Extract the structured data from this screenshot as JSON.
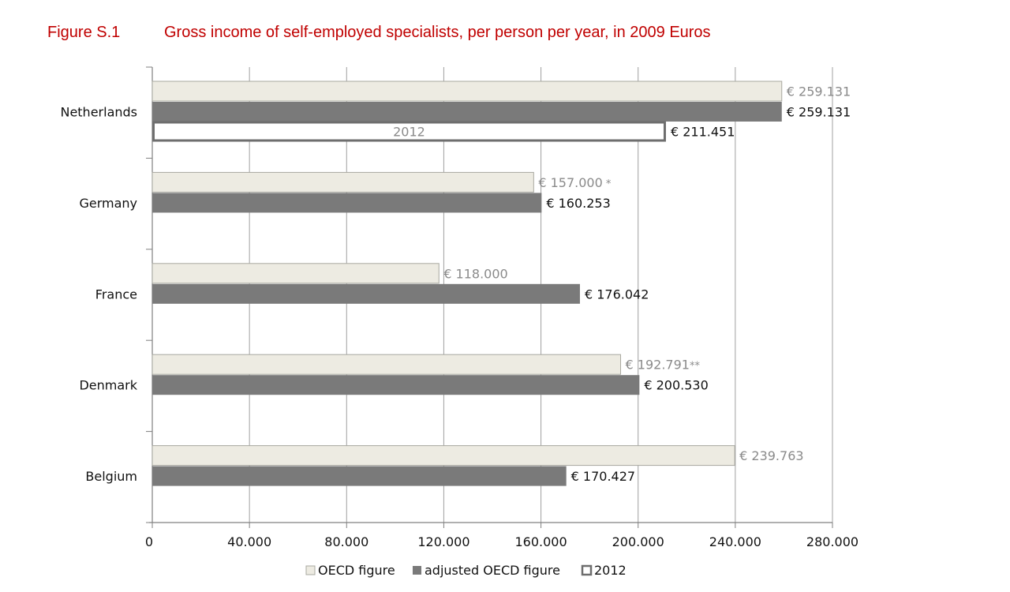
{
  "figure": {
    "number": "Figure S.1",
    "title": "Gross income of self-employed specialists, per person per year, in 2009 Euros"
  },
  "colors": {
    "oecd_fill": "#edebe2",
    "oecd_stroke": "#a8a8a0",
    "adjusted_fill": "#7a7a7a",
    "y2012_stroke": "#6e6e6e",
    "grid": "#a0a0a0",
    "title": "#c00000"
  },
  "chart_data": {
    "type": "bar",
    "orientation": "horizontal",
    "categories": [
      "Netherlands",
      "Germany",
      "France",
      "Denmark",
      "Belgium"
    ],
    "series": [
      {
        "name": "OECD figure",
        "values": [
          259131,
          157000,
          118000,
          192791,
          239763
        ],
        "labels": [
          "€ 259.131",
          "€ 157.000",
          "€ 118.000",
          "€ 192.791",
          "€ 239.763"
        ],
        "suffixes": [
          "",
          " *",
          "",
          "**",
          ""
        ]
      },
      {
        "name": "adjusted OECD figure",
        "values": [
          259131,
          160253,
          176042,
          200530,
          170427
        ],
        "labels": [
          "€ 259.131",
          "€ 160.253",
          "€ 176.042",
          "€ 200.530",
          "€ 170.427"
        ]
      },
      {
        "name": "2012",
        "values": [
          211451,
          null,
          null,
          null,
          null
        ],
        "labels": [
          "€ 211.451",
          "",
          "",
          "",
          ""
        ],
        "inner_labels": [
          "2012",
          "",
          "",
          "",
          ""
        ]
      }
    ],
    "xlim": [
      0,
      280000
    ],
    "xticks": [
      0,
      40000,
      80000,
      120000,
      160000,
      200000,
      240000,
      280000
    ],
    "xtick_labels": [
      "0",
      "40.000",
      "80.000",
      "120.000",
      "160.000",
      "200.000",
      "240.000",
      "280.000"
    ],
    "grid": true,
    "legend": "bottom"
  }
}
